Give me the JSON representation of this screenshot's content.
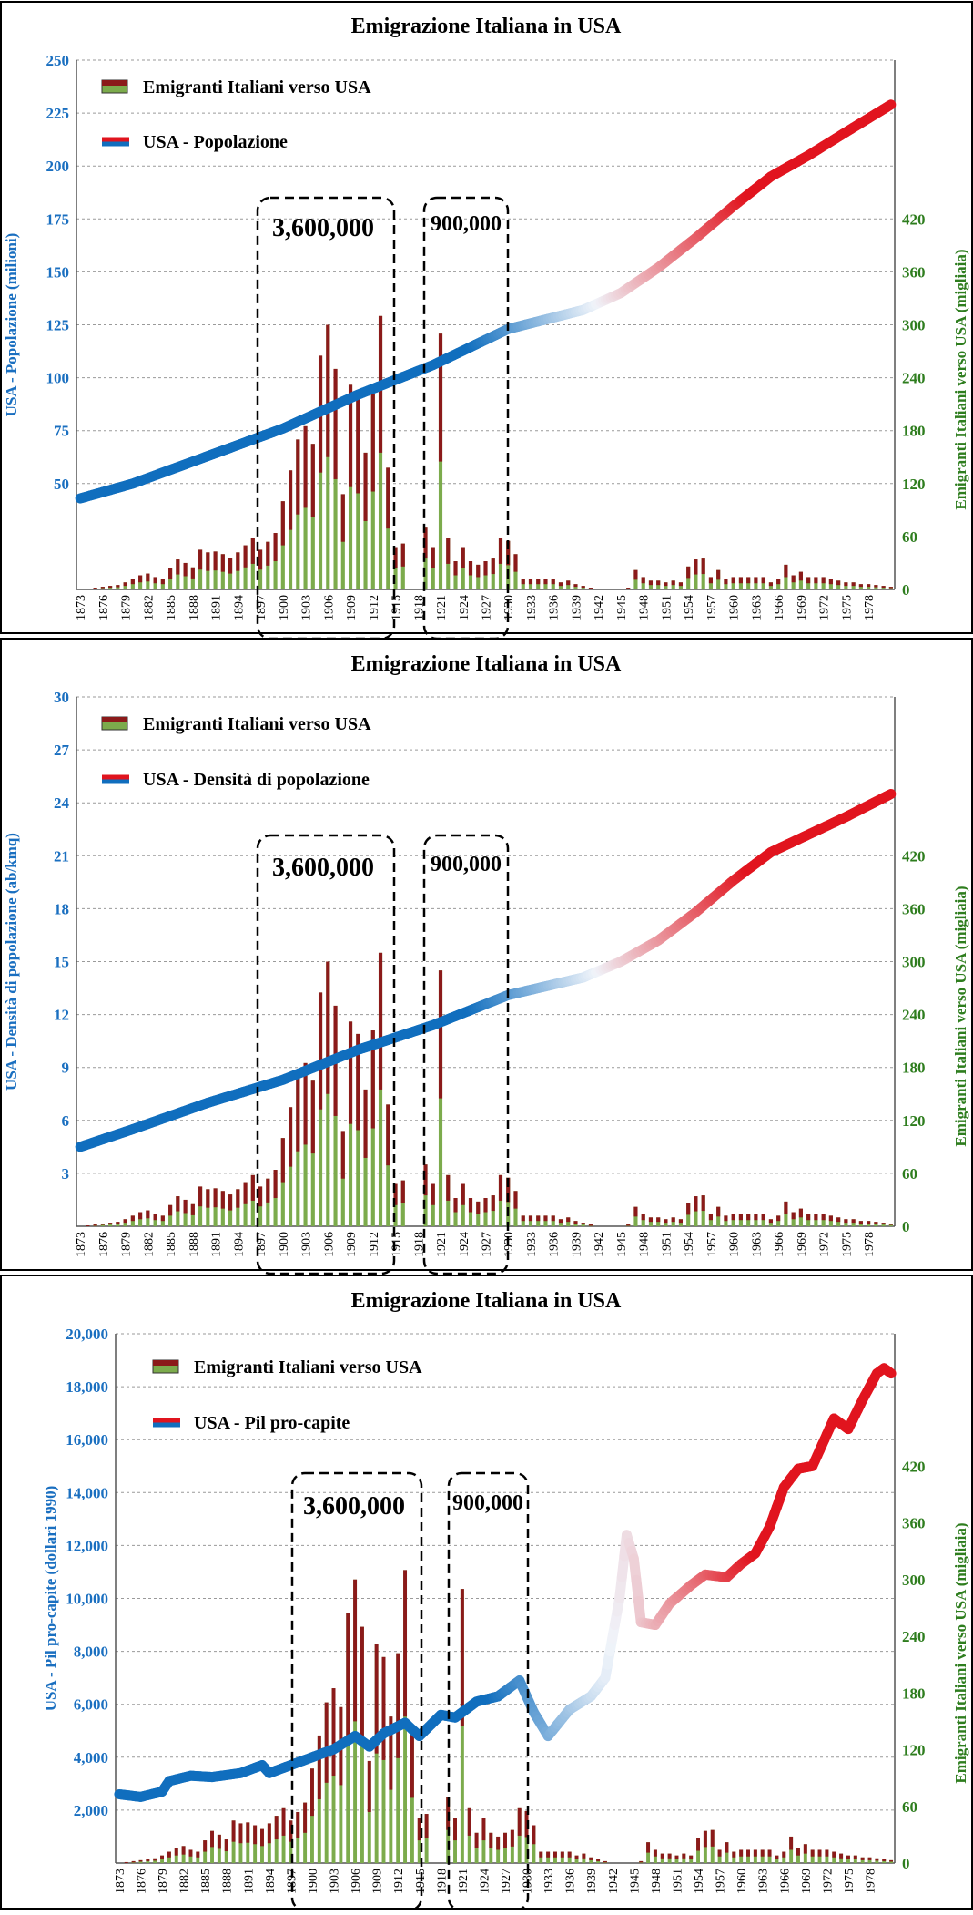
{
  "chart_data": [
    {
      "type": "line+bar",
      "title": "Emigrazione Italiana in USA",
      "ylabel_left": "USA - Popolazione (milioni)",
      "ylabel_right": "Emigranti Italiani verso USA (migliaia)",
      "left_ylim": [
        0,
        250
      ],
      "left_ticks": [
        "50",
        "75",
        "100",
        "125",
        "150",
        "175",
        "200",
        "225",
        "250"
      ],
      "right_ylim": [
        0,
        600
      ],
      "right_ticks": [
        "0",
        "60",
        "120",
        "180",
        "240",
        "300",
        "360",
        "420"
      ],
      "line_series_name": "USA - Popolazione",
      "line_points": [
        [
          1873,
          43
        ],
        [
          1880,
          50
        ],
        [
          1890,
          63
        ],
        [
          1900,
          76
        ],
        [
          1910,
          92
        ],
        [
          1920,
          106
        ],
        [
          1930,
          123
        ],
        [
          1940,
          132
        ],
        [
          1945,
          140
        ],
        [
          1950,
          152
        ],
        [
          1955,
          166
        ],
        [
          1960,
          181
        ],
        [
          1965,
          195
        ],
        [
          1970,
          205
        ],
        [
          1975,
          216
        ],
        [
          1981,
          229
        ]
      ],
      "annotations": [
        {
          "label": "3,600,000"
        },
        {
          "label": "900,000"
        }
      ]
    },
    {
      "type": "line+bar",
      "title": "Emigrazione Italiana in USA",
      "ylabel_left": "USA - Densità di popolazione (ab/kmq)",
      "ylabel_right": "Emigranti Italiani verso USA (migliaia)",
      "left_ylim": [
        0,
        30
      ],
      "left_ticks": [
        "3",
        "6",
        "9",
        "12",
        "15",
        "18",
        "21",
        "24",
        "27",
        "30"
      ],
      "right_ylim": [
        0,
        600
      ],
      "right_ticks": [
        "0",
        "60",
        "120",
        "180",
        "240",
        "300",
        "360",
        "420"
      ],
      "line_series_name": "USA - Densità di popolazione",
      "line_points": [
        [
          1873,
          4.5
        ],
        [
          1880,
          5.5
        ],
        [
          1890,
          7
        ],
        [
          1900,
          8.3
        ],
        [
          1910,
          10
        ],
        [
          1920,
          11.4
        ],
        [
          1930,
          13.1
        ],
        [
          1940,
          14.1
        ],
        [
          1945,
          15
        ],
        [
          1950,
          16.2
        ],
        [
          1955,
          17.8
        ],
        [
          1960,
          19.6
        ],
        [
          1965,
          21.2
        ],
        [
          1970,
          22.2
        ],
        [
          1975,
          23.2
        ],
        [
          1981,
          24.5
        ]
      ],
      "annotations": [
        {
          "label": "3,600,000"
        },
        {
          "label": "900,000"
        }
      ]
    },
    {
      "type": "line+bar",
      "title": "Emigrazione Italiana in USA",
      "ylabel_left": "USA - Pil pro-capite (dollari 1990)",
      "ylabel_right": "Emigranti Italiani verso USA (migliaia)",
      "left_ylim": [
        0,
        20000
      ],
      "left_ticks": [
        "2,000",
        "4,000",
        "6,000",
        "8,000",
        "10,000",
        "12,000",
        "14,000",
        "16,000",
        "18,000",
        "20,000"
      ],
      "right_ylim": [
        0,
        560
      ],
      "right_ticks": [
        "0",
        "60",
        "120",
        "180",
        "240",
        "300",
        "360",
        "420"
      ],
      "line_series_name": "USA - Pil pro-capite",
      "line_points": [
        [
          1873,
          2600
        ],
        [
          1876,
          2500
        ],
        [
          1879,
          2700
        ],
        [
          1880,
          3100
        ],
        [
          1883,
          3300
        ],
        [
          1886,
          3250
        ],
        [
          1890,
          3400
        ],
        [
          1893,
          3700
        ],
        [
          1894,
          3400
        ],
        [
          1897,
          3700
        ],
        [
          1900,
          4000
        ],
        [
          1903,
          4300
        ],
        [
          1906,
          4800
        ],
        [
          1908,
          4400
        ],
        [
          1910,
          4900
        ],
        [
          1913,
          5300
        ],
        [
          1915,
          4800
        ],
        [
          1918,
          5600
        ],
        [
          1920,
          5500
        ],
        [
          1923,
          6100
        ],
        [
          1926,
          6300
        ],
        [
          1929,
          6900
        ],
        [
          1931,
          5700
        ],
        [
          1933,
          4800
        ],
        [
          1936,
          5800
        ],
        [
          1939,
          6300
        ],
        [
          1941,
          7000
        ],
        [
          1943,
          10000
        ],
        [
          1944,
          12400
        ],
        [
          1945,
          11500
        ],
        [
          1946,
          9100
        ],
        [
          1948,
          9000
        ],
        [
          1950,
          9800
        ],
        [
          1953,
          10500
        ],
        [
          1955,
          10900
        ],
        [
          1958,
          10800
        ],
        [
          1960,
          11300
        ],
        [
          1962,
          11700
        ],
        [
          1964,
          12700
        ],
        [
          1966,
          14200
        ],
        [
          1968,
          14900
        ],
        [
          1970,
          15000
        ],
        [
          1972,
          16200
        ],
        [
          1973,
          16800
        ],
        [
          1975,
          16400
        ],
        [
          1977,
          17500
        ],
        [
          1979,
          18500
        ],
        [
          1980,
          18700
        ],
        [
          1981,
          18500
        ]
      ],
      "annotations": [
        {
          "label": "3,600,000"
        },
        {
          "label": "900,000"
        }
      ]
    }
  ],
  "shared": {
    "bar_series_name": "Emigranti Italiani verso USA",
    "x_tick_labels": [
      "1873",
      "1876",
      "1879",
      "1882",
      "1885",
      "1888",
      "1891",
      "1894",
      "1897",
      "1900",
      "1903",
      "1906",
      "1909",
      "1912",
      "1915",
      "1918",
      "1921",
      "1924",
      "1927",
      "1930",
      "1933",
      "1936",
      "1939",
      "1942",
      "1945",
      "1948",
      "1951",
      "1954",
      "1957",
      "1960",
      "1963",
      "1966",
      "1969",
      "1972",
      "1975",
      "1978"
    ],
    "years": [
      1873,
      1874,
      1875,
      1876,
      1877,
      1878,
      1879,
      1880,
      1881,
      1882,
      1883,
      1884,
      1885,
      1886,
      1887,
      1888,
      1889,
      1890,
      1891,
      1892,
      1893,
      1894,
      1895,
      1896,
      1897,
      1898,
      1899,
      1900,
      1901,
      1902,
      1903,
      1904,
      1905,
      1906,
      1907,
      1908,
      1909,
      1910,
      1911,
      1912,
      1913,
      1914,
      1915,
      1916,
      1917,
      1918,
      1919,
      1920,
      1921,
      1922,
      1923,
      1924,
      1925,
      1926,
      1927,
      1928,
      1929,
      1930,
      1931,
      1932,
      1933,
      1934,
      1935,
      1936,
      1937,
      1938,
      1939,
      1940,
      1941,
      1942,
      1943,
      1944,
      1945,
      1946,
      1947,
      1948,
      1949,
      1950,
      1951,
      1952,
      1953,
      1954,
      1955,
      1956,
      1957,
      1958,
      1959,
      1960,
      1961,
      1962,
      1963,
      1964,
      1965,
      1966,
      1967,
      1968,
      1969,
      1970,
      1971,
      1972,
      1973,
      1974,
      1975,
      1976,
      1977,
      1978,
      1979,
      1980,
      1981
    ],
    "emigrants_thousands": [
      0,
      1,
      2,
      3,
      4,
      5,
      8,
      12,
      16,
      18,
      14,
      12,
      24,
      34,
      30,
      25,
      45,
      42,
      43,
      40,
      36,
      42,
      50,
      58,
      45,
      54,
      64,
      100,
      135,
      170,
      185,
      165,
      265,
      300,
      250,
      108,
      232,
      218,
      155,
      222,
      310,
      138,
      48,
      52,
      0,
      0,
      70,
      48,
      290,
      58,
      32,
      48,
      32,
      28,
      32,
      35,
      58,
      55,
      40,
      12,
      12,
      12,
      12,
      12,
      8,
      10,
      6,
      4,
      2,
      0,
      0,
      0,
      0,
      2,
      22,
      14,
      10,
      10,
      8,
      10,
      8,
      26,
      34,
      35,
      14,
      22,
      12,
      14,
      14,
      14,
      14,
      14,
      8,
      12,
      28,
      16,
      20,
      14,
      14,
      14,
      12,
      10,
      8,
      8,
      6,
      6,
      5,
      4,
      3
    ]
  }
}
